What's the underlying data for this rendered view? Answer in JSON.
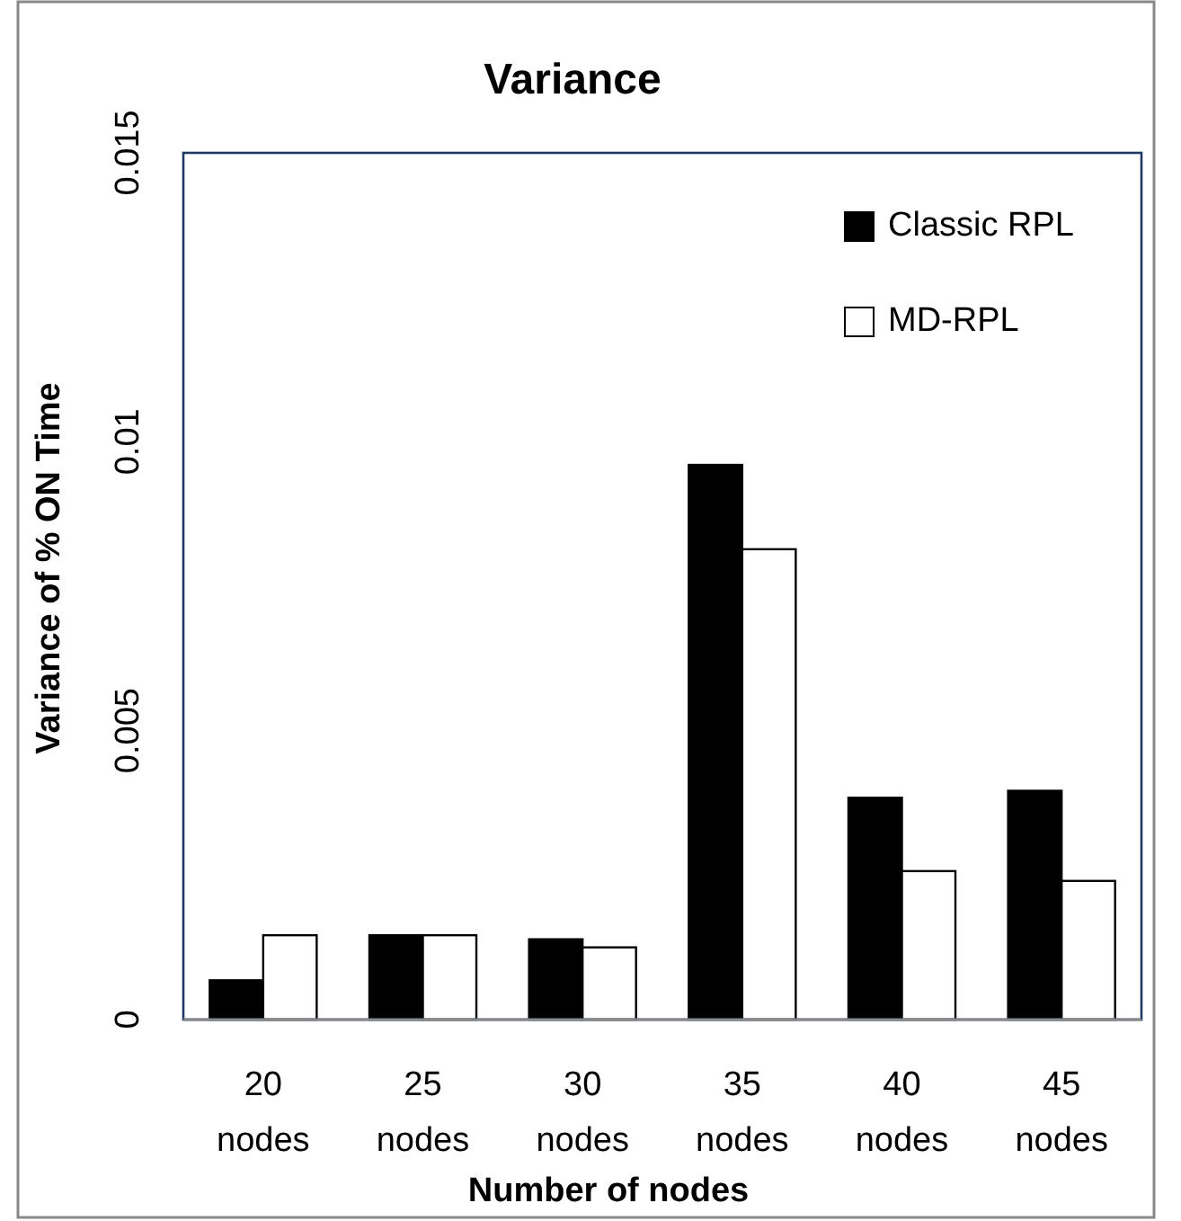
{
  "chart_data": {
    "type": "bar",
    "title": "Variance",
    "xlabel": "Number of nodes",
    "ylabel": "Variance of % ON Time",
    "categories": [
      "20 nodes",
      "25 nodes",
      "30 nodes",
      "35 nodes",
      "40 nodes",
      "45 nodes"
    ],
    "series": [
      {
        "name": "Classic RPL",
        "color": "#000000",
        "values": [
          0.00068,
          0.00146,
          0.00139,
          0.0096,
          0.00384,
          0.00396
        ]
      },
      {
        "name": "MD-RPL",
        "color": "#ffffff",
        "values": [
          0.00146,
          0.00146,
          0.00125,
          0.00814,
          0.00257,
          0.0024
        ]
      }
    ],
    "ylim": [
      0,
      0.015
    ],
    "yticks": [
      0,
      0.005,
      0.01,
      0.015
    ],
    "grid": false,
    "legend": "top right"
  }
}
